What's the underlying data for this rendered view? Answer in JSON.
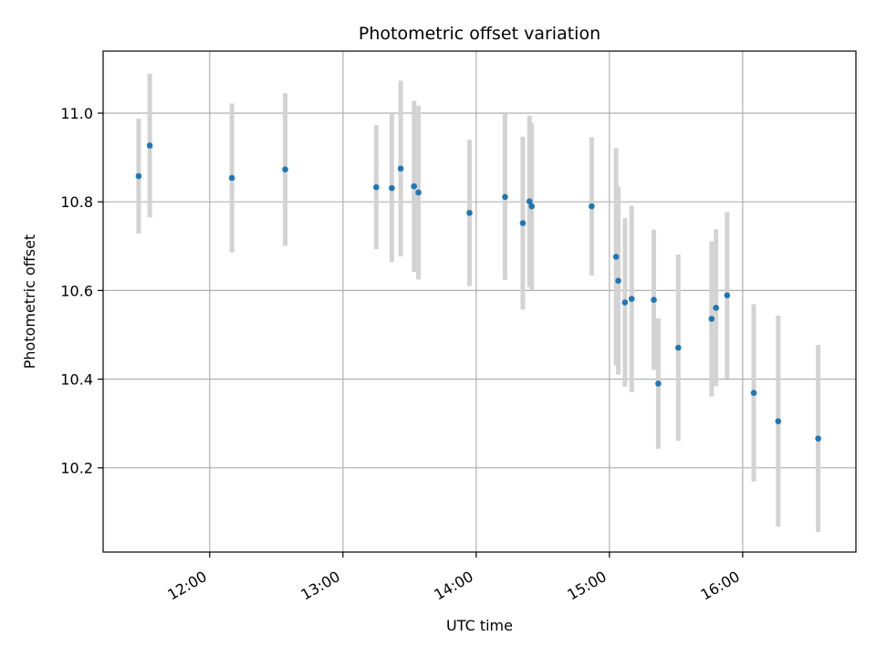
{
  "chart_data": {
    "type": "scatter",
    "title": "Photometric offset variation",
    "xlabel": "UTC time",
    "ylabel": "Photometric offset",
    "x_ticks": [
      "12:00",
      "13:00",
      "14:00",
      "15:00",
      "16:00"
    ],
    "y_ticks": [
      "10.2",
      "10.4",
      "10.6",
      "10.8",
      "11.0"
    ],
    "xlim": [
      "11:12",
      "16:51"
    ],
    "ylim": [
      10.01,
      11.14
    ],
    "grid": true,
    "colors": {
      "point": "#1f77b4",
      "errorbar": "#d3d3d3",
      "grid": "#b0b0b0"
    },
    "series": [
      {
        "points": [
          {
            "x": "11:28",
            "y": 10.858,
            "yerr": 0.13
          },
          {
            "x": "11:33",
            "y": 10.927,
            "yerr": 0.162
          },
          {
            "x": "12:10",
            "y": 10.854,
            "yerr": 0.168
          },
          {
            "x": "12:34",
            "y": 10.873,
            "yerr": 0.172
          },
          {
            "x": "13:15",
            "y": 10.833,
            "yerr": 0.14
          },
          {
            "x": "13:22",
            "y": 10.831,
            "yerr": 0.167
          },
          {
            "x": "13:26",
            "y": 10.875,
            "yerr": 0.198
          },
          {
            "x": "13:32",
            "y": 10.835,
            "yerr": 0.193
          },
          {
            "x": "13:34",
            "y": 10.821,
            "yerr": 0.196
          },
          {
            "x": "13:57",
            "y": 10.775,
            "yerr": 0.165
          },
          {
            "x": "14:13",
            "y": 10.811,
            "yerr": 0.187
          },
          {
            "x": "14:21",
            "y": 10.752,
            "yerr": 0.195
          },
          {
            "x": "14:24",
            "y": 10.801,
            "yerr": 0.193
          },
          {
            "x": "14:25",
            "y": 10.79,
            "yerr": 0.188
          },
          {
            "x": "14:52",
            "y": 10.79,
            "yerr": 0.156
          },
          {
            "x": "15:03",
            "y": 10.676,
            "yerr": 0.245
          },
          {
            "x": "15:04",
            "y": 10.622,
            "yerr": 0.212
          },
          {
            "x": "15:07",
            "y": 10.573,
            "yerr": 0.19
          },
          {
            "x": "15:10",
            "y": 10.581,
            "yerr": 0.21
          },
          {
            "x": "15:20",
            "y": 10.579,
            "yerr": 0.158
          },
          {
            "x": "15:22",
            "y": 10.39,
            "yerr": 0.147
          },
          {
            "x": "15:31",
            "y": 10.471,
            "yerr": 0.21
          },
          {
            "x": "15:46",
            "y": 10.536,
            "yerr": 0.175
          },
          {
            "x": "15:48",
            "y": 10.561,
            "yerr": 0.177
          },
          {
            "x": "15:53",
            "y": 10.589,
            "yerr": 0.188
          },
          {
            "x": "16:05",
            "y": 10.369,
            "yerr": 0.2
          },
          {
            "x": "16:16",
            "y": 10.305,
            "yerr": 0.238
          },
          {
            "x": "16:34",
            "y": 10.266,
            "yerr": 0.211
          }
        ]
      }
    ]
  }
}
